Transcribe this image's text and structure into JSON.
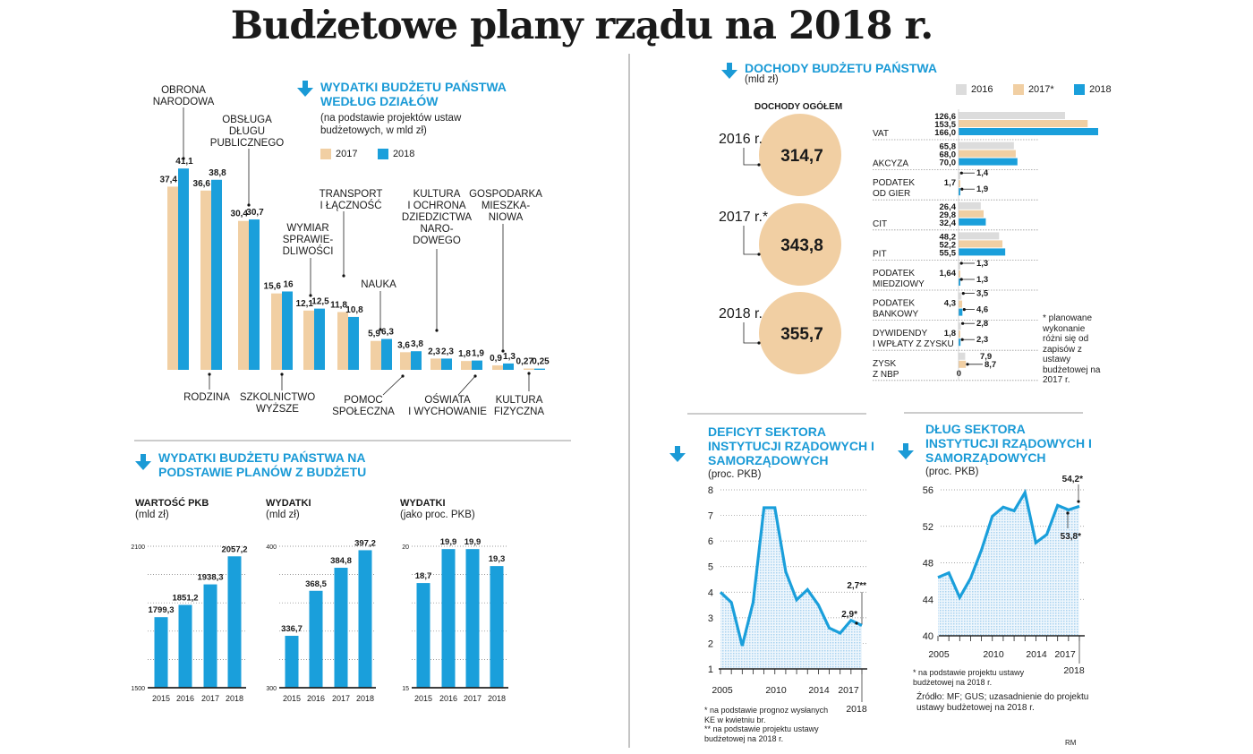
{
  "title": "Budżetowe plany rządu na 2018 r.",
  "colors": {
    "y2016": "#dcdcdc",
    "y2017": "#f1cfa3",
    "y2018": "#1a9fdb",
    "accent": "#1a9ad6",
    "area": "#cfe6f5"
  },
  "icons": {
    "section_marker": "arrow-down-icon"
  },
  "chart_data": [
    {
      "id": "spending_by_section",
      "type": "bar",
      "title": "WYDATKI BUDŻETU PAŃSTWA WEDŁUG DZIAŁÓW",
      "subtitle": "(na podstawie projektów ustaw budżetowych, w mld zł)",
      "legend": [
        "2017",
        "2018"
      ],
      "categories": [
        [
          "OBRONA",
          "NARODOWA"
        ],
        [
          "RODZINA"
        ],
        [
          "OBSŁUGA",
          "DŁUGU",
          "PUBLICZNEGO"
        ],
        [
          "SZKOLNICTWO",
          "WYŻSZE"
        ],
        [
          "WYMIAR",
          "SPRAWIE-",
          "DLIWOŚCI"
        ],
        [
          "TRANSPORT",
          "I ŁĄCZNOŚĆ"
        ],
        [
          "NAUKA"
        ],
        [
          "POMOC",
          "SPOŁECZNA"
        ],
        [
          "KULTURA",
          "I OCHRONA",
          "DZIEDZICTWA",
          "NARO-",
          "DOWEGO"
        ],
        [
          "OŚWIATA",
          "I WYCHOWANIE"
        ],
        [
          "GOSPODARKA",
          "MIESZKA-",
          "NIOWA"
        ],
        [
          "KULTURA",
          "FIZYCZNA"
        ]
      ],
      "series": [
        {
          "name": "2017",
          "values": [
            37.4,
            36.6,
            30.4,
            15.6,
            12.1,
            11.8,
            5.9,
            3.6,
            2.3,
            1.8,
            0.9,
            0.27
          ],
          "labels": [
            "37,4",
            "36,6",
            "30,4",
            "15,6",
            "12,1",
            "11,8",
            "5,9",
            "3,6",
            "2,3",
            "1,8",
            "0,9",
            "0,27"
          ]
        },
        {
          "name": "2018",
          "values": [
            41.1,
            38.8,
            30.7,
            16,
            12.5,
            10.8,
            6.3,
            3.8,
            2.3,
            1.9,
            1.3,
            0.25
          ],
          "labels": [
            "41,1",
            "38,8",
            "30,7",
            "16",
            "12,5",
            "10,8",
            "6,3",
            "3,8",
            "2,3",
            "1,9",
            "1,3",
            "0,25"
          ]
        }
      ]
    },
    {
      "id": "revenue_total",
      "type": "bubble",
      "title": "DOCHODY BUDŻETU PAŃSTWA",
      "unit": "(mld zł)",
      "heading": "DOCHODY OGÓŁEM",
      "items": [
        {
          "year": "2016 r.",
          "value": "314,7"
        },
        {
          "year": "2017 r.*",
          "value": "343,8"
        },
        {
          "year": "2018 r.",
          "value": "355,7"
        }
      ]
    },
    {
      "id": "revenue_by_source",
      "type": "bar",
      "orientation": "horizontal",
      "legend": [
        "2016",
        "2017*",
        "2018"
      ],
      "groups": [
        {
          "label": [
            "VAT"
          ],
          "values": [
            126.6,
            153.5,
            166.0
          ],
          "labels": [
            "126,6",
            "153,5",
            "166,0"
          ]
        },
        {
          "label": [
            "AKCYZA"
          ],
          "values": [
            65.8,
            68.0,
            70.0
          ],
          "labels": [
            "65,8",
            "68,0",
            "70,0"
          ]
        },
        {
          "label": [
            "PODATEK",
            "OD GIER"
          ],
          "values": [
            1.4,
            1.7,
            1.9
          ],
          "labels": [
            "1,4",
            "1,7",
            "1,9"
          ]
        },
        {
          "label": [
            "CIT"
          ],
          "values": [
            26.4,
            29.8,
            32.4
          ],
          "labels": [
            "26,4",
            "29,8",
            "32,4"
          ]
        },
        {
          "label": [
            "PIT"
          ],
          "values": [
            48.2,
            52.2,
            55.5
          ],
          "labels": [
            "48,2",
            "52,2",
            "55,5"
          ]
        },
        {
          "label": [
            "PODATEK",
            "MIEDZIOWY"
          ],
          "values": [
            1.3,
            1.64,
            1.3
          ],
          "labels": [
            "1,3",
            "1,64",
            "1,3"
          ]
        },
        {
          "label": [
            "PODATEK",
            "BANKOWY"
          ],
          "values": [
            3.5,
            4.3,
            4.6
          ],
          "labels": [
            "3,5",
            "4,3",
            "4,6"
          ]
        },
        {
          "label": [
            "DYWIDENDY",
            "I WPŁATY Z ZYSKU"
          ],
          "values": [
            2.8,
            1.8,
            2.3
          ],
          "labels": [
            "2,8",
            "1,8",
            "2,3"
          ]
        },
        {
          "label": [
            "ZYSK",
            "Z NBP"
          ],
          "values": [
            7.9,
            8.7,
            0
          ],
          "labels": [
            "7,9",
            "8,7",
            "0"
          ]
        }
      ],
      "footnote": "* planowane wykonanie różni się od zapisów z ustawy budżetowej na 2017 r."
    },
    {
      "id": "deficit",
      "type": "area",
      "title": "DEFICYT SEKTORA INSTYTUCJI RZĄDOWYCH I SAMORZĄDOWYCH",
      "unit": "(proc. PKB)",
      "x": [
        2005,
        2006,
        2007,
        2008,
        2009,
        2010,
        2011,
        2012,
        2013,
        2014,
        2015,
        2016,
        2017,
        2018
      ],
      "values": [
        4.0,
        3.6,
        1.9,
        3.6,
        7.3,
        7.3,
        4.8,
        3.7,
        4.1,
        3.5,
        2.6,
        2.4,
        2.9,
        2.7
      ],
      "ylim": [
        1,
        8
      ],
      "yticks": [
        1,
        2,
        3,
        4,
        5,
        6,
        7,
        8
      ],
      "xtick_labels": [
        "2005",
        "2010",
        "2014",
        "2017",
        "2018"
      ],
      "annotations": [
        "2,9*",
        "2,7**"
      ],
      "footnotes": [
        "* na podstawie prognoz wysłanych KE w kwietniu br.",
        "** na podstawie projektu ustawy budżetowej na 2018 r."
      ],
      "grid": true
    },
    {
      "id": "debt",
      "type": "area",
      "title": "DŁUG SEKTORA INSTYTUCJI RZĄDOWYCH I SAMORZĄDOWYCH",
      "unit": "(proc. PKB)",
      "x": [
        2005,
        2006,
        2007,
        2008,
        2009,
        2010,
        2011,
        2012,
        2013,
        2014,
        2015,
        2016,
        2017,
        2018
      ],
      "values": [
        46.4,
        46.9,
        44.2,
        46.3,
        49.4,
        53.1,
        54.1,
        53.7,
        55.7,
        50.2,
        51.1,
        54.3,
        53.8,
        54.2
      ],
      "ylim": [
        40,
        56
      ],
      "yticks": [
        40,
        44,
        48,
        52,
        56
      ],
      "xtick_labels": [
        "2005",
        "2010",
        "2014",
        "2017",
        "2018"
      ],
      "annotations": [
        "53,8*",
        "54,2*"
      ],
      "footnotes": [
        "* na podstawie projektu ustawy budżetowej na 2018 r."
      ],
      "source": "Źródło: MF; GUS; uzasadnienie do projektu ustawy budżetowej na 2018 r.",
      "grid": true
    },
    {
      "id": "gdp",
      "type": "bar",
      "group_title": "WYDATKI BUDŻETU PAŃSTWA NA PODSTAWIE PLANÓW Z BUDŻETU",
      "title": "WARTOŚĆ PKB",
      "unit": "(mld zł)",
      "categories": [
        "2015",
        "2016",
        "2017",
        "2018"
      ],
      "values": [
        1799.3,
        1851.2,
        1938.3,
        2057.2
      ],
      "labels": [
        "1799,3",
        "1851,2",
        "1938,3",
        "2057,2"
      ],
      "ylim": [
        1500,
        2100
      ],
      "ytick_labels": [
        "1500",
        "2100"
      ]
    },
    {
      "id": "spending",
      "type": "bar",
      "title": "WYDATKI",
      "unit": "(mld zł)",
      "categories": [
        "2015",
        "2016",
        "2017",
        "2018"
      ],
      "values": [
        336.7,
        368.5,
        384.8,
        397.2
      ],
      "labels": [
        "336,7",
        "368,5",
        "384,8",
        "397,2"
      ],
      "ylim": [
        300,
        400
      ],
      "ytick_labels": [
        "300",
        "400"
      ]
    },
    {
      "id": "spending_pct",
      "type": "bar",
      "title": "WYDATKI",
      "unit": "(jako proc. PKB)",
      "categories": [
        "2015",
        "2016",
        "2017",
        "2018"
      ],
      "values": [
        18.7,
        19.9,
        19.9,
        19.3
      ],
      "labels": [
        "18,7",
        "19,9",
        "19,9",
        "19,3"
      ],
      "ylim": [
        15,
        20
      ],
      "ytick_labels": [
        "15",
        "20"
      ]
    }
  ],
  "credit": "RM"
}
